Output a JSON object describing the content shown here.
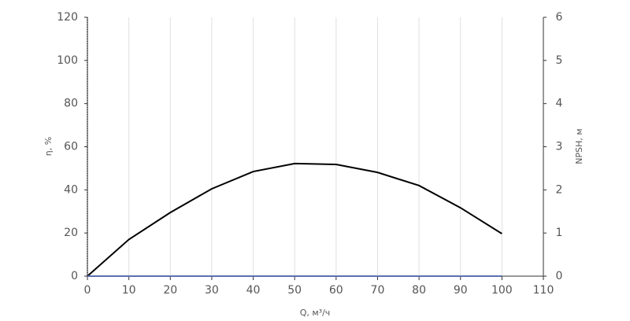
{
  "chart_data": {
    "type": "line",
    "x_label": "Q, м³/ч",
    "y_label": "η, %",
    "y2_label": "NPSH, м",
    "x": [
      0,
      10,
      20,
      30,
      40,
      50,
      60,
      70,
      80,
      90,
      100
    ],
    "series": [
      {
        "name": "η",
        "color": "#000000",
        "values": [
          0,
          17,
          29.5,
          40.5,
          48.5,
          52.2,
          51.8,
          48.1,
          42,
          31.7,
          19.7
        ]
      },
      {
        "name": "NPSH",
        "color": "#5b6fb0",
        "axis": "y2",
        "values": [
          0,
          0,
          0,
          0,
          0,
          0,
          0,
          0,
          0,
          0,
          0
        ]
      }
    ],
    "xlim": [
      0,
      110
    ],
    "xticks": [
      0,
      10,
      20,
      30,
      40,
      50,
      60,
      70,
      80,
      90,
      100,
      110
    ],
    "ylim": [
      0,
      120
    ],
    "yticks": [
      0,
      20,
      40,
      60,
      80,
      100,
      120
    ],
    "y2lim": [
      0,
      6
    ],
    "y2ticks": [
      0,
      1,
      2,
      3,
      4,
      5,
      6
    ],
    "grid": "x"
  }
}
